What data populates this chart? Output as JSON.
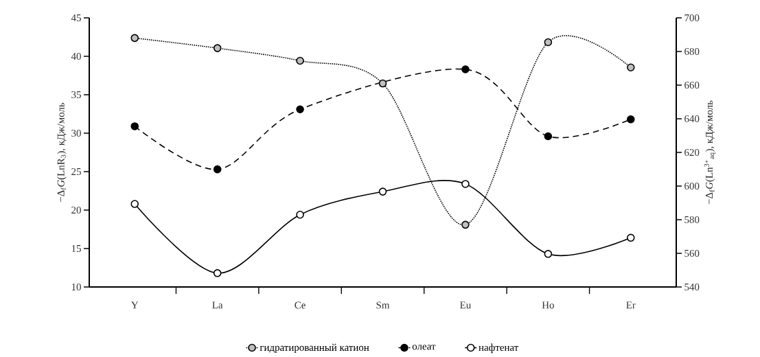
{
  "chart_data": {
    "type": "line",
    "categories": [
      "Y",
      "La",
      "Ce",
      "Sm",
      "Eu",
      "Ho",
      "Er"
    ],
    "ylabel": "−Δ$_{f}$*G*(LnR$_{3}$), кДж/моль",
    "y2label": "−Δ$_{f}$*G*(Ln$^{3+}$$_{aq}$), кДж/моль",
    "ylim": [
      10,
      45
    ],
    "yticks": [
      10,
      15,
      20,
      25,
      30,
      35,
      40,
      45
    ],
    "y2lim": [
      540,
      700
    ],
    "y2ticks": [
      540,
      560,
      580,
      600,
      620,
      640,
      660,
      680,
      700
    ],
    "legend": "bottom",
    "marker": "circle",
    "series": [
      {
        "name": "гидратированный катион",
        "color": "#bfbfbf",
        "axis": "y2",
        "line_style": "dotted",
        "values": [
          688,
          682,
          674.5,
          661,
          577,
          685.5,
          670.5
        ]
      },
      {
        "name": "олеат",
        "color": "#000000",
        "line_style": "dashed",
        "values": [
          30.9,
          25.3,
          33.1,
          null,
          38.3,
          29.6,
          31.8
        ]
      },
      {
        "name": "нафтенат",
        "color": "#ffffff",
        "line_style": "solid",
        "values": [
          20.8,
          11.8,
          19.4,
          22.4,
          23.4,
          14.3,
          16.4
        ]
      }
    ]
  }
}
